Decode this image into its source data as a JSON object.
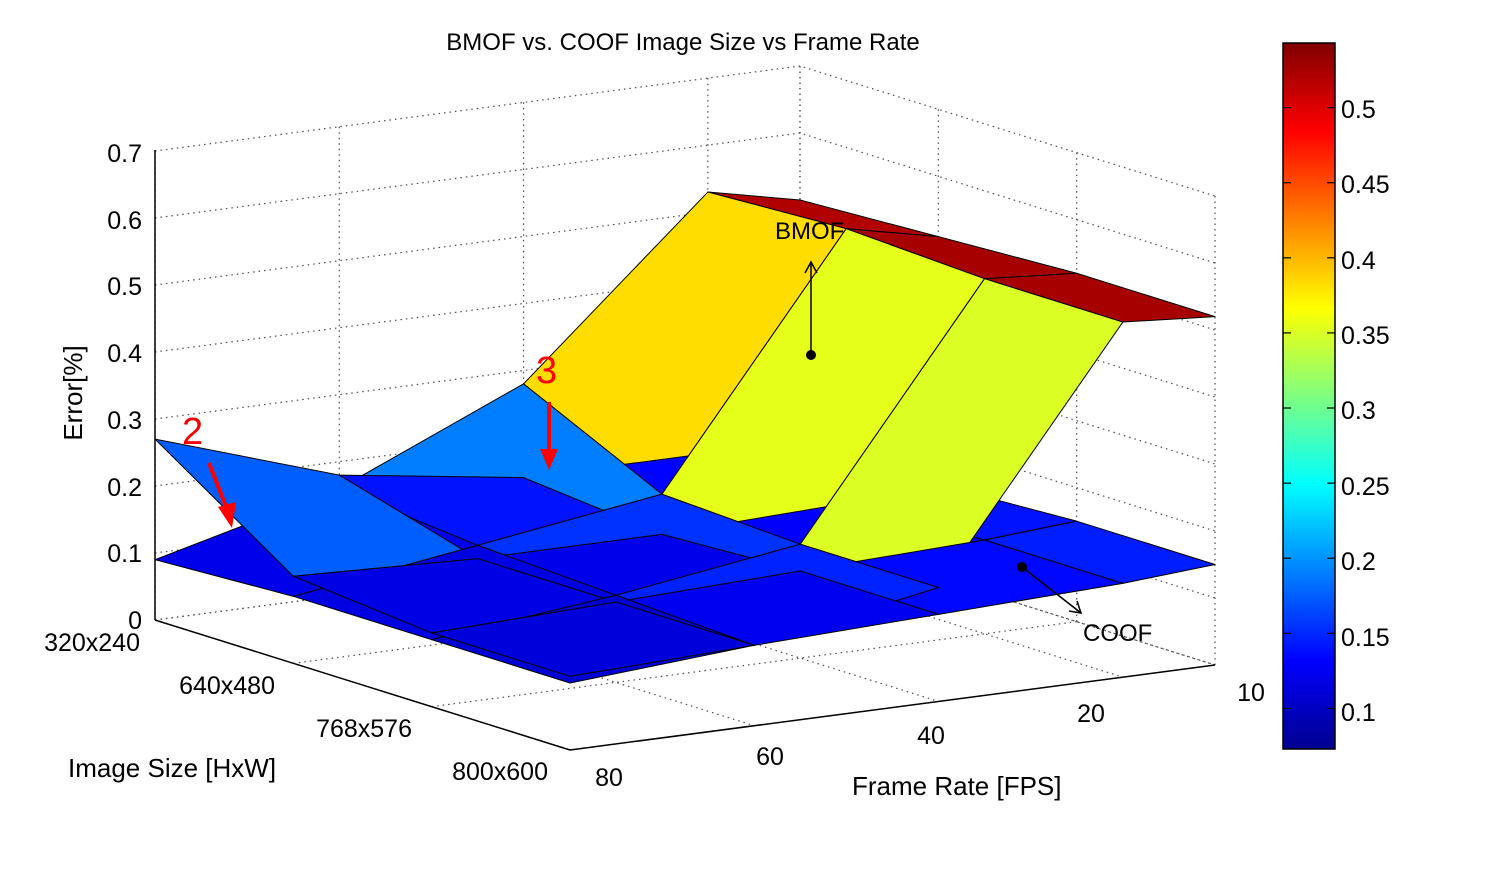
{
  "chart_data": {
    "type": "surface3d",
    "title": "BMOF vs. COOF Image Size vs Frame Rate",
    "xlabel": "Frame Rate [FPS]",
    "ylabel": "Image Size [HxW]",
    "zlabel": "Error[%]",
    "frame_rate_ticks": [
      "10",
      "20",
      "40",
      "60",
      "80"
    ],
    "image_size_ticks": [
      "320x240",
      "640x480",
      "768x576",
      "800x600"
    ],
    "error_ticks": [
      "0",
      "0.1",
      "0.2",
      "0.3",
      "0.4",
      "0.5",
      "0.6",
      "0.7"
    ],
    "zlim": [
      0,
      0.7
    ],
    "grid": true,
    "colorbar": {
      "ticks": [
        "0.1",
        "0.15",
        "0.2",
        "0.25",
        "0.3",
        "0.35",
        "0.4",
        "0.45",
        "0.5"
      ],
      "range": [
        0.073,
        0.543
      ],
      "colormap": "jet"
    },
    "surfaces": [
      {
        "name": "BMOF",
        "frame_rate": [
          80,
          60,
          40,
          20,
          10
        ],
        "image_size": [
          "320x240",
          "640x480",
          "768x576",
          "800x600"
        ],
        "error": [
          [
            0.09,
            0.16,
            0.28,
            0.53,
            0.5
          ],
          [
            0.1,
            0.14,
            0.18,
            0.54,
            0.51
          ],
          [
            0.1,
            0.13,
            0.17,
            0.53,
            0.52
          ],
          [
            0.1,
            0.12,
            0.17,
            0.53,
            0.52
          ]
        ]
      },
      {
        "name": "COOF",
        "frame_rate": [
          80,
          60,
          40,
          20,
          10
        ],
        "image_size": [
          "320x240",
          "640x480",
          "768x576",
          "800x600"
        ],
        "error": [
          [
            0.27,
            0.18,
            0.14,
            0.14,
            0.14
          ],
          [
            0.13,
            0.12,
            0.12,
            0.13,
            0.14
          ],
          [
            0.11,
            0.12,
            0.13,
            0.14,
            0.15
          ],
          [
            0.11,
            0.12,
            0.13,
            0.14,
            0.15
          ]
        ]
      }
    ],
    "annotations": [
      {
        "text": "BMOF",
        "target": "BMOF surface"
      },
      {
        "text": "COOF",
        "target": "COOF surface"
      },
      {
        "text": "2",
        "color": "#ff0000"
      },
      {
        "text": "3",
        "color": "#ff0000"
      }
    ]
  }
}
